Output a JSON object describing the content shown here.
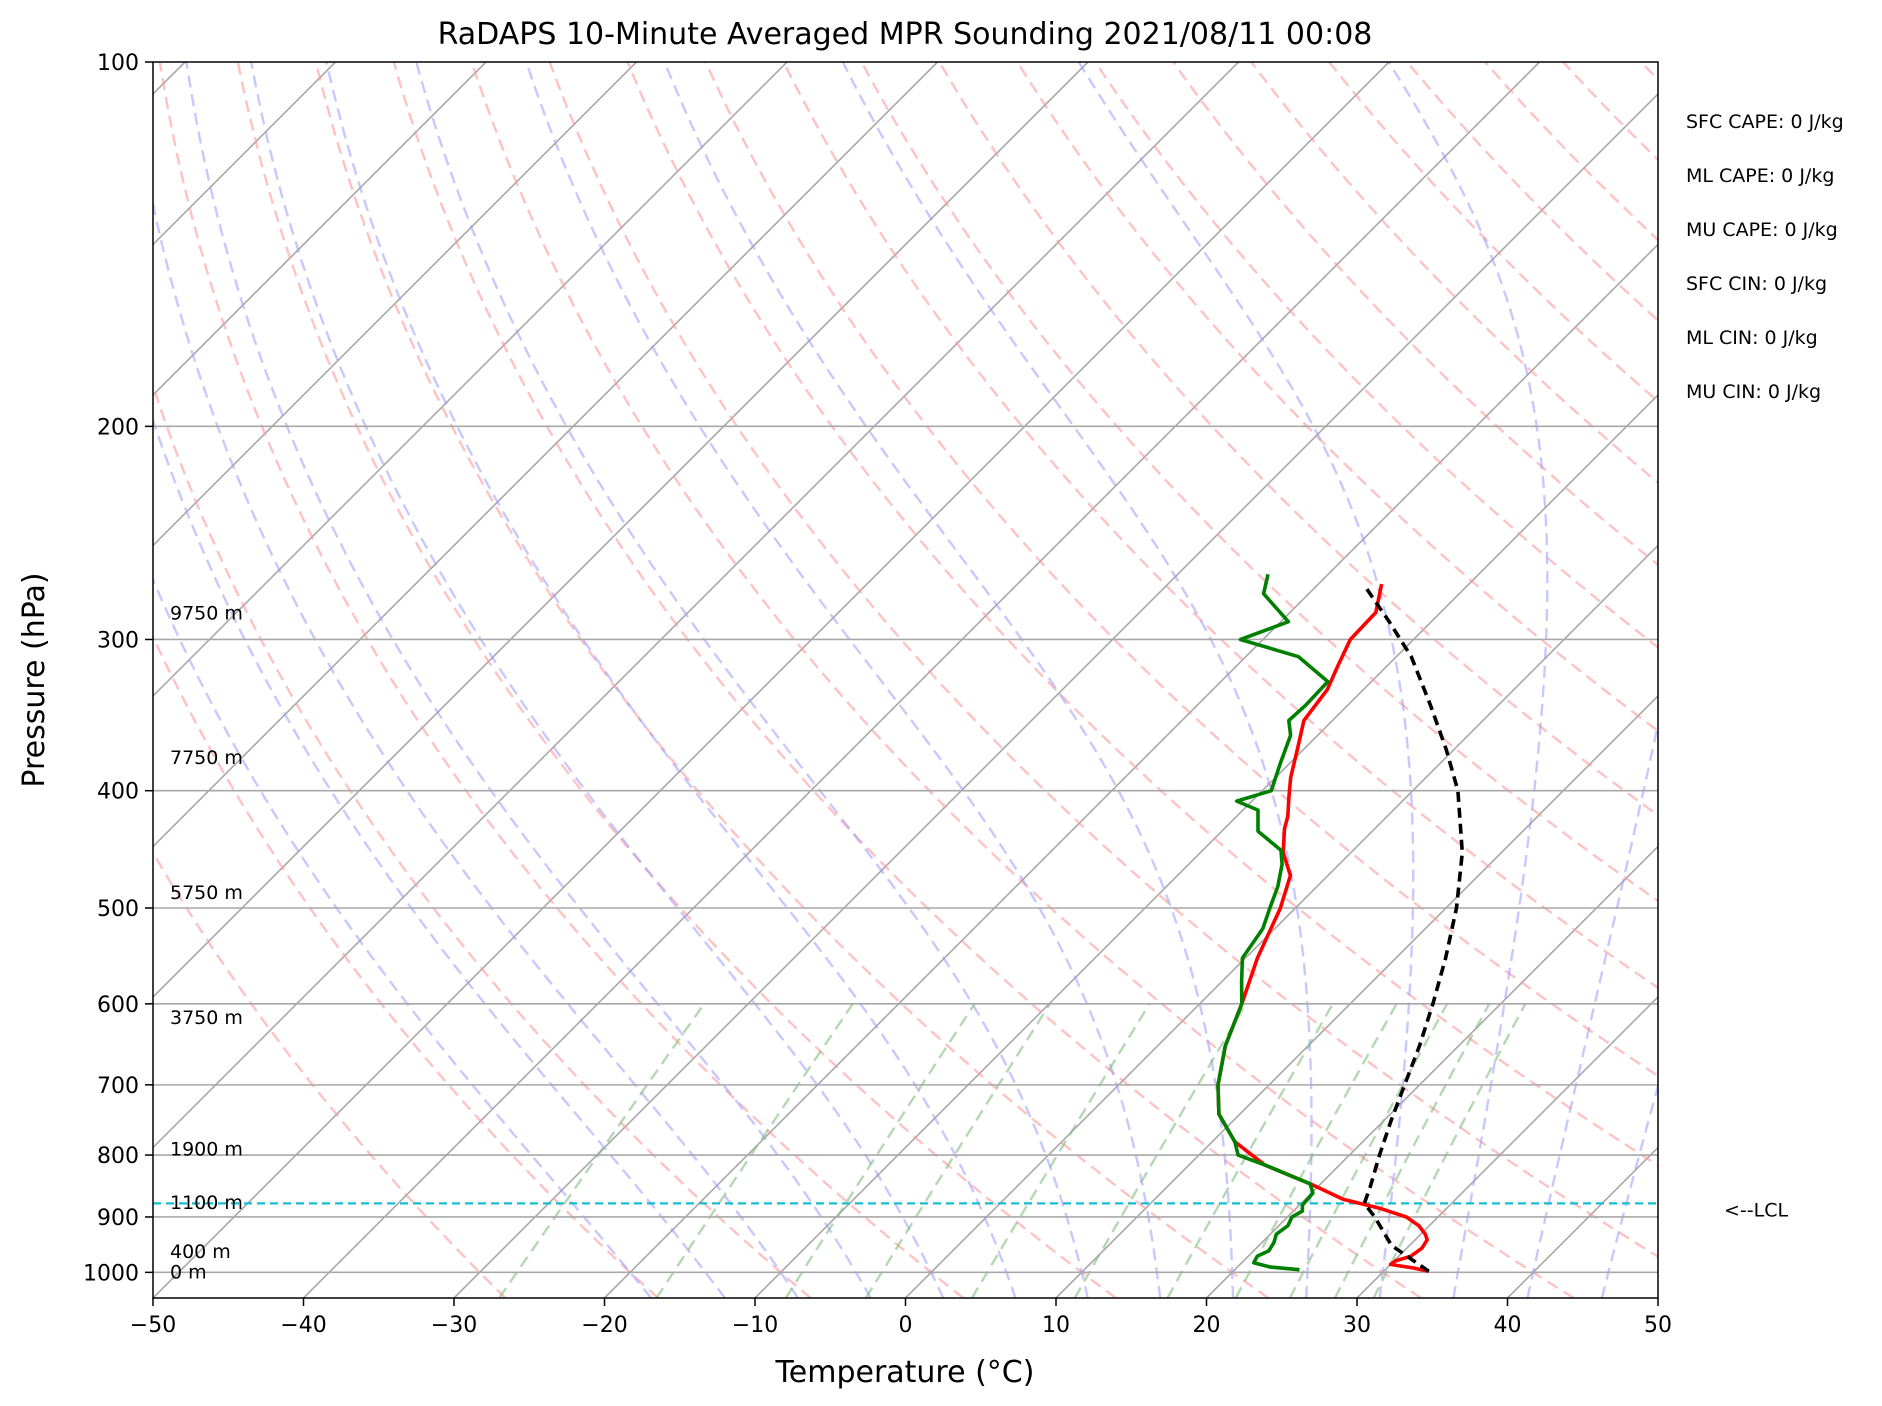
{
  "chart_data": {
    "type": "line",
    "subtype": "skew-T log-P sounding",
    "title": "RaDAPS 10-Minute Averaged MPR Sounding 2021/08/11 00:08",
    "xlabel": "Temperature (°C)",
    "ylabel": "Pressure (hPa)",
    "xlim": [
      -50,
      50
    ],
    "ylim": [
      1050,
      100
    ],
    "y_scale": "log",
    "grid": true,
    "x_ticks": [
      -50,
      -40,
      -30,
      -20,
      -10,
      0,
      10,
      20,
      30,
      40,
      50
    ],
    "x_tick_labels": [
      "−50",
      "−40",
      "−30",
      "−20",
      "−10",
      "0",
      "10",
      "20",
      "30",
      "40",
      "50"
    ],
    "y_ticks": [
      100,
      200,
      300,
      400,
      500,
      600,
      700,
      800,
      900,
      1000
    ],
    "y_tick_labels": [
      "100",
      "200",
      "300",
      "400",
      "500",
      "600",
      "700",
      "800",
      "900",
      "1000"
    ],
    "height_labels": [
      {
        "text": "9750 m",
        "p": 285
      },
      {
        "text": "7750 m",
        "p": 375
      },
      {
        "text": "5750 m",
        "p": 485
      },
      {
        "text": "3750 m",
        "p": 615
      },
      {
        "text": "1900 m",
        "p": 790
      },
      {
        "text": "1100 m",
        "p": 875
      },
      {
        "text": "400 m",
        "p": 960
      },
      {
        "text": "0 m",
        "p": 998
      }
    ],
    "stats": [
      "SFC CAPE: 0 J/kg",
      "ML CAPE: 0 J/kg",
      "MU CAPE: 0 J/kg",
      "SFC CIN: 0 J/kg",
      "ML CIN: 0 J/kg",
      "MU CIN: 0 J/kg"
    ],
    "lcl": {
      "label": "<--LCL",
      "p": 877
    },
    "series": [
      {
        "name": "temperature",
        "color": "#ff0000",
        "points": [
          [
            998,
            33.0
          ],
          [
            992,
            31.8
          ],
          [
            985,
            30.0
          ],
          [
            978,
            30.1
          ],
          [
            970,
            30.8
          ],
          [
            955,
            31.0
          ],
          [
            940,
            30.8
          ],
          [
            930,
            30.3
          ],
          [
            915,
            29.3
          ],
          [
            900,
            27.9
          ],
          [
            885,
            25.5
          ],
          [
            870,
            22.5
          ],
          [
            855,
            20.6
          ],
          [
            845,
            19.3
          ],
          [
            815,
            15.0
          ],
          [
            780,
            11.5
          ],
          [
            740,
            8.6
          ],
          [
            700,
            6.6
          ],
          [
            650,
            4.5
          ],
          [
            600,
            2.8
          ],
          [
            550,
            0.8
          ],
          [
            500,
            -1.0
          ],
          [
            470,
            -2.5
          ],
          [
            450,
            -4.5
          ],
          [
            430,
            -6.0
          ],
          [
            420,
            -6.6
          ],
          [
            405,
            -7.8
          ],
          [
            390,
            -9.0
          ],
          [
            370,
            -10.4
          ],
          [
            350,
            -11.9
          ],
          [
            330,
            -12.4
          ],
          [
            315,
            -13.3
          ],
          [
            300,
            -14.2
          ],
          [
            285,
            -14.3
          ],
          [
            270,
            -15.8
          ]
        ]
      },
      {
        "name": "dewpoint",
        "color": "#008000",
        "points": [
          [
            995,
            24.3
          ],
          [
            990,
            22.2
          ],
          [
            982,
            20.8
          ],
          [
            970,
            20.6
          ],
          [
            960,
            21.0
          ],
          [
            945,
            20.8
          ],
          [
            930,
            20.4
          ],
          [
            915,
            20.6
          ],
          [
            900,
            20.3
          ],
          [
            890,
            20.6
          ],
          [
            880,
            20.2
          ],
          [
            860,
            20.1
          ],
          [
            845,
            19.3
          ],
          [
            815,
            15.0
          ],
          [
            800,
            12.6
          ],
          [
            780,
            11.5
          ],
          [
            740,
            8.6
          ],
          [
            700,
            6.6
          ],
          [
            650,
            4.5
          ],
          [
            600,
            2.8
          ],
          [
            575,
            1.3
          ],
          [
            550,
            -0.2
          ],
          [
            520,
            -0.8
          ],
          [
            500,
            -1.7
          ],
          [
            480,
            -2.6
          ],
          [
            460,
            -3.8
          ],
          [
            448,
            -4.8
          ],
          [
            432,
            -7.6
          ],
          [
            415,
            -9.0
          ],
          [
            408,
            -11.0
          ],
          [
            400,
            -9.4
          ],
          [
            380,
            -10.6
          ],
          [
            360,
            -11.8
          ],
          [
            350,
            -12.9
          ],
          [
            340,
            -12.8
          ],
          [
            325,
            -12.9
          ],
          [
            310,
            -16.5
          ],
          [
            300,
            -21.5
          ],
          [
            290,
            -19.5
          ],
          [
            275,
            -23.0
          ],
          [
            265,
            -24.0
          ]
        ]
      },
      {
        "name": "parcel",
        "color": "#000000",
        "points": [
          [
            998,
            33.0
          ],
          [
            950,
            28.8
          ],
          [
            900,
            25.8
          ],
          [
            877,
            24.2
          ],
          [
            850,
            23.5
          ],
          [
            800,
            22.0
          ],
          [
            750,
            20.5
          ],
          [
            700,
            19.0
          ],
          [
            650,
            17.4
          ],
          [
            600,
            15.5
          ],
          [
            550,
            13.3
          ],
          [
            500,
            10.7
          ],
          [
            450,
            7.4
          ],
          [
            400,
            3.0
          ],
          [
            370,
            -0.5
          ],
          [
            340,
            -4.5
          ],
          [
            310,
            -9.0
          ],
          [
            290,
            -12.8
          ],
          [
            270,
            -17.0
          ]
        ]
      }
    ]
  }
}
